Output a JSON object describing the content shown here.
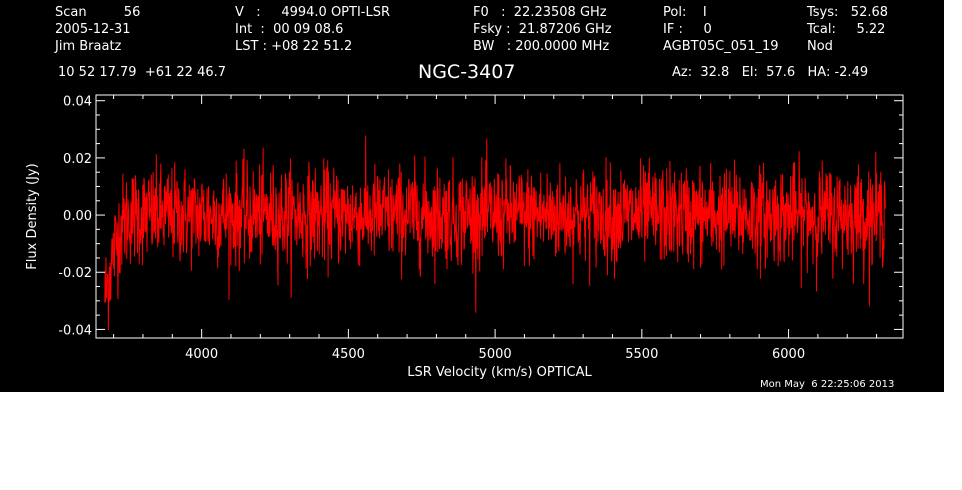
{
  "header": {
    "col1": [
      "Scan         56",
      "2005-12-31",
      "Jim Braatz"
    ],
    "col2": [
      "V   :     4994.0 OPTI-LSR",
      "Int  :  00 09 08.6",
      "LST : +08 22 51.2"
    ],
    "col3": [
      "F0   :  22.23508 GHz",
      "Fsky :  21.87206 GHz",
      "BW   : 200.0000 MHz"
    ],
    "col4": [
      "Pol:    I",
      "IF :     0",
      "AGBT05C_051_19"
    ],
    "col5": [
      "Tsys:   52.68",
      "Tcal:     5.22",
      "Nod"
    ],
    "coords": "10 52 17.79  +61 22 46.7",
    "source": "NGC-3407",
    "azel": "Az:  32.8   El:  57.6   HA: -2.49",
    "timestamp": "Mon May  6 22:25:06 2013"
  },
  "colors": {
    "background": "#000000",
    "axes": "#ffffff",
    "trace": "#ff0000"
  },
  "chart_data": {
    "type": "line",
    "title": "NGC-3407",
    "xlabel": "LSR Velocity (km/s) OPTICAL",
    "ylabel": "Flux Density (Jy)",
    "xlim": [
      3640,
      6390
    ],
    "ylim": [
      -0.043,
      0.042
    ],
    "xticks": [
      4000,
      4500,
      5000,
      5500,
      6000
    ],
    "xtick_labels": [
      "4000",
      "4500",
      "5000",
      "5500",
      "6000"
    ],
    "yticks": [
      -0.04,
      -0.02,
      0.0,
      0.02,
      0.04
    ],
    "ytick_labels": [
      "-0.04",
      "-0.02",
      "0.00",
      "0.02",
      "0.04"
    ],
    "series": [
      {
        "color": "#ff0000",
        "x_start": 3670,
        "x_end": 6330,
        "x_step": 10,
        "noise_rms": 0.0085,
        "values": [
          -0.028,
          -0.024,
          -0.018,
          -0.013,
          -0.009,
          -0.005,
          -0.003,
          -0.002,
          -0.001,
          0,
          0,
          0,
          0,
          0,
          0,
          0,
          0,
          0,
          0,
          0,
          0,
          0,
          0,
          0,
          0,
          0,
          0,
          0,
          0,
          0,
          0,
          0,
          0,
          0,
          0,
          0,
          0,
          0,
          0,
          0,
          0,
          0,
          0,
          0,
          0,
          0,
          0,
          0,
          0,
          0,
          0,
          0,
          0,
          0,
          0,
          0,
          0,
          0,
          0,
          0,
          0,
          0,
          0,
          0,
          0,
          0,
          0,
          0,
          0,
          0,
          0,
          0,
          0,
          0,
          0,
          0,
          0,
          0,
          0,
          0,
          0,
          0,
          0,
          0,
          0,
          0,
          0,
          0,
          0,
          0,
          0,
          0,
          0,
          0,
          0,
          0,
          0,
          0,
          0,
          0,
          0,
          0,
          0,
          0,
          0,
          0,
          0,
          0,
          0,
          0,
          0,
          0,
          0,
          0,
          0,
          0,
          0,
          0,
          0,
          0,
          0,
          0,
          0,
          0,
          0,
          0,
          0,
          0,
          0,
          0,
          0,
          0,
          0,
          0,
          0,
          0,
          0,
          0,
          0,
          0,
          0,
          0,
          0,
          0,
          0,
          0,
          0,
          0,
          0,
          0,
          0,
          0,
          0,
          0,
          0,
          0,
          0,
          0,
          0,
          0,
          0,
          0,
          0,
          0,
          0,
          0,
          0,
          0,
          0,
          0,
          0,
          0,
          0,
          0,
          0,
          0,
          0,
          0,
          0,
          0,
          0,
          0,
          0,
          0,
          0,
          0,
          0,
          0,
          0,
          0,
          0,
          0,
          0,
          0,
          0,
          0,
          0,
          0,
          0,
          0,
          0,
          0,
          0,
          0,
          0,
          0,
          0,
          0,
          0,
          0,
          0,
          0,
          0,
          0,
          0,
          0,
          0,
          0,
          0,
          0,
          0,
          0,
          0,
          0,
          0,
          0,
          0,
          0,
          0,
          0,
          0,
          0,
          0,
          0,
          0,
          0,
          0,
          0,
          0,
          0,
          0,
          0,
          0,
          0,
          0,
          0,
          0,
          0,
          0,
          0,
          0,
          0,
          0,
          0,
          0,
          0,
          0,
          0,
          0,
          0,
          0,
          0,
          0,
          0,
          0,
          0,
          0.006,
          0.012
        ]
      }
    ]
  }
}
